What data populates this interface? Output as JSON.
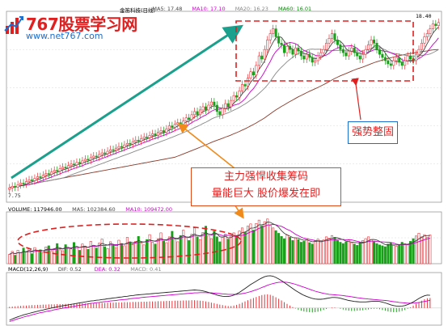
{
  "header": {
    "price_legend": [
      {
        "text": "金笛科技(日线)",
        "color": "#000000"
      },
      {
        "text": "MA5: 17.48",
        "color": "#444444"
      },
      {
        "text": "MA10: 17.10",
        "color": "#cc00cc"
      },
      {
        "text": "MA20: 16.23",
        "color": "#888888"
      },
      {
        "text": "MA60: 16.01",
        "color": "#008800"
      }
    ],
    "volume_legend": [
      {
        "text": "VOLUME: 117946.00",
        "color": "#000000"
      },
      {
        "text": "MA5: 102384.60",
        "color": "#444444"
      },
      {
        "text": "MA10: 109472.00",
        "color": "#cc00cc"
      }
    ],
    "macd_legend": [
      {
        "text": "MACD(12,26,9)",
        "color": "#000000"
      },
      {
        "text": "DIF: 0.52",
        "color": "#444444"
      },
      {
        "text": "DEA: 0.32",
        "color": "#cc00cc"
      },
      {
        "text": "MACD: 0.41",
        "color": "#888888"
      }
    ]
  },
  "logo": {
    "brand": "767股票学习网",
    "url": "www.net767.com"
  },
  "callouts": {
    "main_line1": "主力强悍收集筹码",
    "main_line2": "量能巨大 股价爆发在即",
    "consolidation": "强势整固"
  },
  "colors": {
    "up": "#e8343a",
    "down": "#18a018",
    "ma5": "#444444",
    "ma10": "#cc00cc",
    "ma20": "#8a8a8a",
    "ma60": "#8b3a2a",
    "trend_arrow": "#1aa08c",
    "dashed_box": "#e02020",
    "callout_arrow": "#f08a1a"
  },
  "chart_data": {
    "type": "candlestick",
    "price": {
      "low_label": "7.75",
      "high_label": "18.40",
      "ylim": [
        7.0,
        19.0
      ],
      "close": [
        7.9,
        8.0,
        7.95,
        8.1,
        8.2,
        8.15,
        8.3,
        8.4,
        8.35,
        8.5,
        8.6,
        8.55,
        8.7,
        8.8,
        8.75,
        8.9,
        9.0,
        8.95,
        9.1,
        9.2,
        9.15,
        9.3,
        9.4,
        9.35,
        9.5,
        9.45,
        9.6,
        9.7,
        9.65,
        9.8,
        9.9,
        9.85,
        10.0,
        10.1,
        10.05,
        10.2,
        10.3,
        10.25,
        10.4,
        10.5,
        10.45,
        10.6,
        10.7,
        10.65,
        10.8,
        10.9,
        10.85,
        11.0,
        11.1,
        11.05,
        11.2,
        11.3,
        11.2,
        11.4,
        11.5,
        11.4,
        11.6,
        11.8,
        11.7,
        11.9,
        12.0,
        11.9,
        12.1,
        12.3,
        12.2,
        12.5,
        12.7,
        12.5,
        12.8,
        13.0,
        12.8,
        13.1,
        13.3,
        13.1,
        12.7,
        12.5,
        12.9,
        13.2,
        13.0,
        13.4,
        13.7,
        13.6,
        14.0,
        14.4,
        14.3,
        14.8,
        15.2,
        15.0,
        15.6,
        16.2,
        16.0,
        16.6,
        17.2,
        17.6,
        17.9,
        17.4,
        17.0,
        16.9,
        16.4,
        16.8,
        16.6,
        16.3,
        16.7,
        16.5,
        16.2,
        16.0,
        16.3,
        16.1,
        15.8,
        15.9,
        16.2,
        16.4,
        16.6,
        17.0,
        17.3,
        17.6,
        17.2,
        16.9,
        16.6,
        16.4,
        16.2,
        16.5,
        16.7,
        16.4,
        16.2,
        16.0,
        16.3,
        16.6,
        16.9,
        17.2,
        17.0,
        16.6,
        16.3,
        16.1,
        15.9,
        15.7,
        15.6,
        15.9,
        16.1,
        15.8,
        15.6,
        15.9,
        16.2,
        16.0,
        15.9,
        16.3,
        16.6,
        17.0,
        17.4,
        17.6,
        17.9,
        18.2,
        18.1,
        18.3
      ],
      "open": [
        7.8,
        7.9,
        8.0,
        7.95,
        8.1,
        8.2,
        8.15,
        8.3,
        8.4,
        8.35,
        8.5,
        8.6,
        8.55,
        8.7,
        8.8,
        8.75,
        8.9,
        9.0,
        8.95,
        9.1,
        9.2,
        9.15,
        9.3,
        9.4,
        9.35,
        9.5,
        9.45,
        9.6,
        9.7,
        9.65,
        9.8,
        9.9,
        9.85,
        10.0,
        10.1,
        10.05,
        10.2,
        10.3,
        10.25,
        10.4,
        10.5,
        10.45,
        10.6,
        10.7,
        10.65,
        10.8,
        10.9,
        10.85,
        11.0,
        11.1,
        11.05,
        11.2,
        11.3,
        11.2,
        11.4,
        11.5,
        11.4,
        11.6,
        11.8,
        11.7,
        11.9,
        12.0,
        11.9,
        12.1,
        12.3,
        12.2,
        12.5,
        12.7,
        12.5,
        12.8,
        13.0,
        12.8,
        13.1,
        13.3,
        13.1,
        12.7,
        12.5,
        12.9,
        13.2,
        13.0,
        13.4,
        13.7,
        13.6,
        14.0,
        14.4,
        14.3,
        14.8,
        15.2,
        15.0,
        15.6,
        16.2,
        16.0,
        16.6,
        17.2,
        17.6,
        17.9,
        17.4,
        17.0,
        16.9,
        16.4,
        16.8,
        16.6,
        16.3,
        16.7,
        16.5,
        16.2,
        16.0,
        16.3,
        16.1,
        15.8,
        15.9,
        16.2,
        16.4,
        16.6,
        17.0,
        17.3,
        17.6,
        17.2,
        16.9,
        16.6,
        16.4,
        16.2,
        16.5,
        16.7,
        16.4,
        16.2,
        16.0,
        16.3,
        16.6,
        16.9,
        17.2,
        17.0,
        16.6,
        16.3,
        16.1,
        15.9,
        15.7,
        15.6,
        15.9,
        16.1,
        15.8,
        15.6,
        15.9,
        16.2,
        16.0,
        15.9,
        16.3,
        16.6,
        17.0,
        17.4,
        17.6,
        17.9,
        18.2,
        18.1
      ]
    },
    "volume": [
      42,
      55,
      38,
      60,
      48,
      70,
      52,
      66,
      45,
      72,
      58,
      62,
      50,
      75,
      80,
      55,
      68,
      90,
      62,
      58,
      85,
      70,
      66,
      95,
      72,
      60,
      88,
      78,
      64,
      100,
      82,
      70,
      92,
      110,
      76,
      68,
      98,
      84,
      72,
      105,
      90,
      80,
      118,
      95,
      86,
      100,
      122,
      92,
      84,
      108,
      130,
      96,
      88,
      112,
      138,
      102,
      94,
      120,
      145,
      110,
      98,
      126,
      150,
      116,
      104,
      132,
      160,
      120,
      108,
      140,
      168,
      126,
      112,
      146,
      120,
      98,
      118,
      132,
      110,
      126,
      138,
      124,
      146,
      160,
      142,
      168,
      178,
      150,
      180,
      195,
      170,
      188,
      200,
      172,
      160,
      148,
      136,
      122,
      112,
      128,
      118,
      104,
      116,
      108,
      96,
      100,
      112,
      94,
      88,
      102,
      110,
      98,
      106,
      120,
      114,
      126,
      118,
      104,
      96,
      90,
      98,
      106,
      94,
      88,
      82,
      96,
      104,
      112,
      120,
      108,
      98,
      90,
      84,
      80,
      76,
      88,
      94,
      82,
      78,
      86,
      96,
      90,
      84,
      100,
      112,
      124,
      136,
      120,
      130,
      118,
      128
    ],
    "macd": [
      0.05,
      0.06,
      0.07,
      0.08,
      0.09,
      0.1,
      0.1,
      0.11,
      0.12,
      0.12,
      0.13,
      0.13,
      0.14,
      0.14,
      0.15,
      0.15,
      0.15,
      0.16,
      0.16,
      0.16,
      0.17,
      0.17,
      0.17,
      0.18,
      0.18,
      0.18,
      0.19,
      0.19,
      0.19,
      0.2,
      0.2,
      0.2,
      0.21,
      0.21,
      0.21,
      0.22,
      0.22,
      0.22,
      0.23,
      0.23,
      0.23,
      0.24,
      0.24,
      0.24,
      0.25,
      0.25,
      0.25,
      0.26,
      0.26,
      0.26,
      0.27,
      0.27,
      0.27,
      0.28,
      0.28,
      0.28,
      0.29,
      0.29,
      0.29,
      0.3,
      0.3,
      0.3,
      0.31,
      0.31,
      0.31,
      0.32,
      0.32,
      0.31,
      0.3,
      0.29,
      0.27,
      0.25,
      0.22,
      0.2,
      0.17,
      0.14,
      0.12,
      0.1,
      0.08,
      0.08,
      0.1,
      0.13,
      0.17,
      0.22,
      0.27,
      0.32,
      0.37,
      0.41,
      0.45,
      0.49,
      0.53,
      0.55,
      0.56,
      0.54,
      0.5,
      0.44,
      0.38,
      0.31,
      0.24,
      0.17,
      0.1,
      0.04,
      -0.02,
      -0.07,
      -0.11,
      -0.14,
      -0.16,
      -0.17,
      -0.18,
      -0.17,
      -0.15,
      -0.12,
      -0.08,
      -0.04,
      0.0,
      0.02,
      0.02,
      0.0,
      -0.03,
      -0.06,
      -0.09,
      -0.11,
      -0.12,
      -0.12,
      -0.11,
      -0.1,
      -0.09,
      -0.07,
      -0.06,
      -0.04,
      -0.03,
      -0.03,
      -0.05,
      -0.08,
      -0.11,
      -0.14,
      -0.16,
      -0.17,
      -0.17,
      -0.15,
      -0.12,
      -0.08,
      -0.03,
      0.03,
      0.1,
      0.17,
      0.24,
      0.3,
      0.36,
      0.4,
      0.41
    ],
    "dif": [
      -0.5,
      -0.45,
      -0.4,
      -0.36,
      -0.32,
      -0.28,
      -0.25,
      -0.22,
      -0.19,
      -0.16,
      -0.13,
      -0.1,
      -0.08,
      -0.05,
      -0.03,
      0.0,
      0.02,
      0.05,
      0.07,
      0.09,
      0.11,
      0.13,
      0.15,
      0.17,
      0.19,
      0.21,
      0.23,
      0.25,
      0.27,
      0.29,
      0.3,
      0.32,
      0.33,
      0.35,
      0.36,
      0.38,
      0.39,
      0.41,
      0.42,
      0.44,
      0.45,
      0.47,
      0.48,
      0.5,
      0.51,
      0.53,
      0.54,
      0.55,
      0.56,
      0.57,
      0.58,
      0.59,
      0.6,
      0.61,
      0.62,
      0.63,
      0.64,
      0.65,
      0.66,
      0.67,
      0.68,
      0.69,
      0.7,
      0.71,
      0.72,
      0.73,
      0.74,
      0.73,
      0.72,
      0.7,
      0.67,
      0.64,
      0.6,
      0.57,
      0.53,
      0.5,
      0.48,
      0.47,
      0.47,
      0.49,
      0.53,
      0.58,
      0.64,
      0.72,
      0.8,
      0.88,
      0.96,
      1.03,
      1.1,
      1.17,
      1.23,
      1.28,
      1.31,
      1.32,
      1.3,
      1.25,
      1.19,
      1.12,
      1.04,
      0.96,
      0.88,
      0.8,
      0.72,
      0.65,
      0.58,
      0.52,
      0.47,
      0.43,
      0.39,
      0.37,
      0.36,
      0.36,
      0.37,
      0.39,
      0.41,
      0.43,
      0.43,
      0.42,
      0.4,
      0.37,
      0.34,
      0.31,
      0.29,
      0.27,
      0.26,
      0.25,
      0.25,
      0.25,
      0.26,
      0.27,
      0.28,
      0.28,
      0.27,
      0.24,
      0.21,
      0.17,
      0.13,
      0.1,
      0.08,
      0.07,
      0.08,
      0.1,
      0.14,
      0.19,
      0.25,
      0.32,
      0.39,
      0.45,
      0.5,
      0.53,
      0.52
    ],
    "dea": [
      -0.55,
      -0.52,
      -0.48,
      -0.44,
      -0.41,
      -0.37,
      -0.34,
      -0.31,
      -0.28,
      -0.25,
      -0.22,
      -0.19,
      -0.17,
      -0.14,
      -0.12,
      -0.1,
      -0.07,
      -0.05,
      -0.03,
      -0.01,
      0.01,
      0.03,
      0.05,
      0.07,
      0.09,
      0.11,
      0.13,
      0.15,
      0.17,
      0.19,
      0.2,
      0.22,
      0.23,
      0.25,
      0.26,
      0.27,
      0.29,
      0.3,
      0.31,
      0.33,
      0.34,
      0.35,
      0.36,
      0.38,
      0.39,
      0.4,
      0.41,
      0.43,
      0.44,
      0.45,
      0.46,
      0.47,
      0.48,
      0.49,
      0.5,
      0.51,
      0.52,
      0.53,
      0.54,
      0.55,
      0.56,
      0.57,
      0.58,
      0.59,
      0.6,
      0.61,
      0.62,
      0.62,
      0.63,
      0.63,
      0.63,
      0.62,
      0.62,
      0.61,
      0.6,
      0.59,
      0.58,
      0.57,
      0.56,
      0.56,
      0.56,
      0.56,
      0.57,
      0.59,
      0.61,
      0.64,
      0.67,
      0.71,
      0.75,
      0.79,
      0.84,
      0.88,
      0.93,
      0.97,
      1.0,
      1.03,
      1.05,
      1.06,
      1.06,
      1.05,
      1.03,
      1.0,
      0.97,
      0.93,
      0.89,
      0.85,
      0.81,
      0.77,
      0.73,
      0.69,
      0.66,
      0.63,
      0.6,
      0.58,
      0.56,
      0.55,
      0.54,
      0.53,
      0.52,
      0.51,
      0.49,
      0.48,
      0.46,
      0.44,
      0.42,
      0.41,
      0.39,
      0.38,
      0.37,
      0.36,
      0.35,
      0.34,
      0.33,
      0.32,
      0.31,
      0.3,
      0.28,
      0.26,
      0.25,
      0.23,
      0.22,
      0.21,
      0.2,
      0.2,
      0.2,
      0.21,
      0.23,
      0.25,
      0.27,
      0.29,
      0.32
    ]
  }
}
